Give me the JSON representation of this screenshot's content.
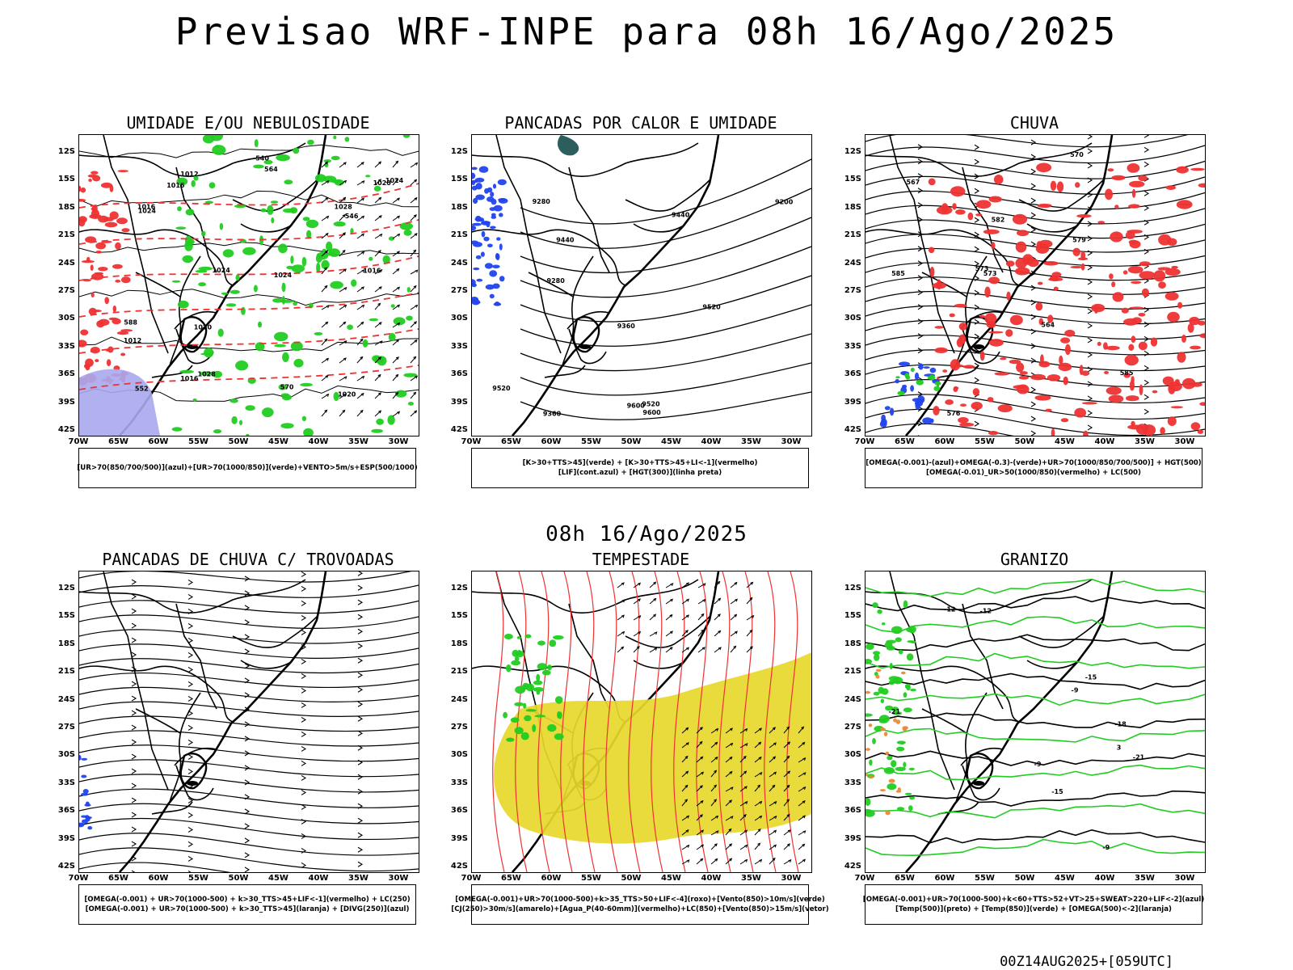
{
  "title": "Previsao WRF-INPE  para 08h 16/Ago/2025",
  "mid_date": "08h 16/Ago/2025",
  "footer": "00Z14AUG2025+[059UTC]",
  "axes": {
    "lat_ticks": [
      "12S",
      "15S",
      "18S",
      "21S",
      "24S",
      "27S",
      "30S",
      "33S",
      "36S",
      "39S",
      "42S"
    ],
    "lon_ticks": [
      "70W",
      "65W",
      "60W",
      "55W",
      "50W",
      "45W",
      "40W",
      "35W",
      "30W"
    ]
  },
  "colors": {
    "green": "#22cc22",
    "red": "#ee3333",
    "blue": "#2244ee",
    "yellow": "#e6d82a",
    "teal": "#2d5e5e",
    "lavender": "#a8a8ee"
  },
  "panels": [
    {
      "title": "UMIDADE E/OU NEBULOSIDADE",
      "legend": [
        "[UR>70(850/700/500)](azul)+[UR>70(1000/850)](verde)+VENTO>5m/s+ESP(500/1000)"
      ],
      "labels": [
        "1016",
        "1016",
        "1024",
        "1020",
        "1012",
        "1024",
        "1024",
        "1016",
        "1020",
        "1020",
        "1028",
        "1012",
        "1016",
        "1024",
        "1028",
        "564",
        "552",
        "546",
        "540",
        "570",
        "588"
      ]
    },
    {
      "title": "PANCADAS POR CALOR E UMIDADE",
      "legend": [
        "[K>30+TTS>45](verde) + [K>30+TTS>45+LI<-1](vermelho)",
        "[LIF](cont.azul) + [HGT(300)](linha preta)"
      ],
      "labels": [
        "9600",
        "9600",
        "9520",
        "9520",
        "9520",
        "9440",
        "9440",
        "9360",
        "9360",
        "9280",
        "9280",
        "9200"
      ]
    },
    {
      "title": "CHUVA",
      "legend": [
        "[OMEGA(-0.001)-(azul)+OMEGA(-0.3)-(verde)+UR>70(1000/850/700/500)] + HGT(500)",
        "[OMEGA(-0.01)_UR>50(1000/850)(vermelho) + LC(500)"
      ],
      "labels": [
        "585",
        "585",
        "579",
        "576",
        "573",
        "573",
        "570",
        "567",
        "564",
        "582"
      ]
    },
    {
      "title": "PANCADAS DE CHUVA C/ TROVOADAS",
      "legend": [
        "[OMEGA(-0.001) + UR>70(1000-500) + k>30_TTS>45+LIF<-1](vermelho) + LC(250)",
        "[OMEGA(-0.001) + UR>70(1000-500) + k>30_TTS>45](laranja) + [DIVG(250)](azul)"
      ],
      "labels": []
    },
    {
      "title": "TEMPESTADE",
      "legend": [
        "[OMEGA(-0.001)+UR>70(1000-500)+k>35_TTS>50+LIF<-4](roxo)+[Vento(850)>10m/s](verde)",
        "[CJ(250)>30m/s](amarelo)+[Agua_P(40-60mm)](vermelho)+LC(850)+[Vento(850)>15m/s](vetor)"
      ],
      "labels": []
    },
    {
      "title": "GRANIZO",
      "legend": [
        "[OMEGA(-0.001)+UR>70(1000-500)+k<60+TTS>52+VT>25+SWEAT>220+LIF<-2](azul)",
        "[Temp(500)](preto) + [Temp(850)](verde) + [OMEGA(500)<-2](laranja)"
      ],
      "labels": [
        "-9",
        "-9",
        "-9",
        "-12",
        "-12",
        "-15",
        "-15",
        "-18",
        "-21",
        "-21",
        "3"
      ]
    }
  ]
}
